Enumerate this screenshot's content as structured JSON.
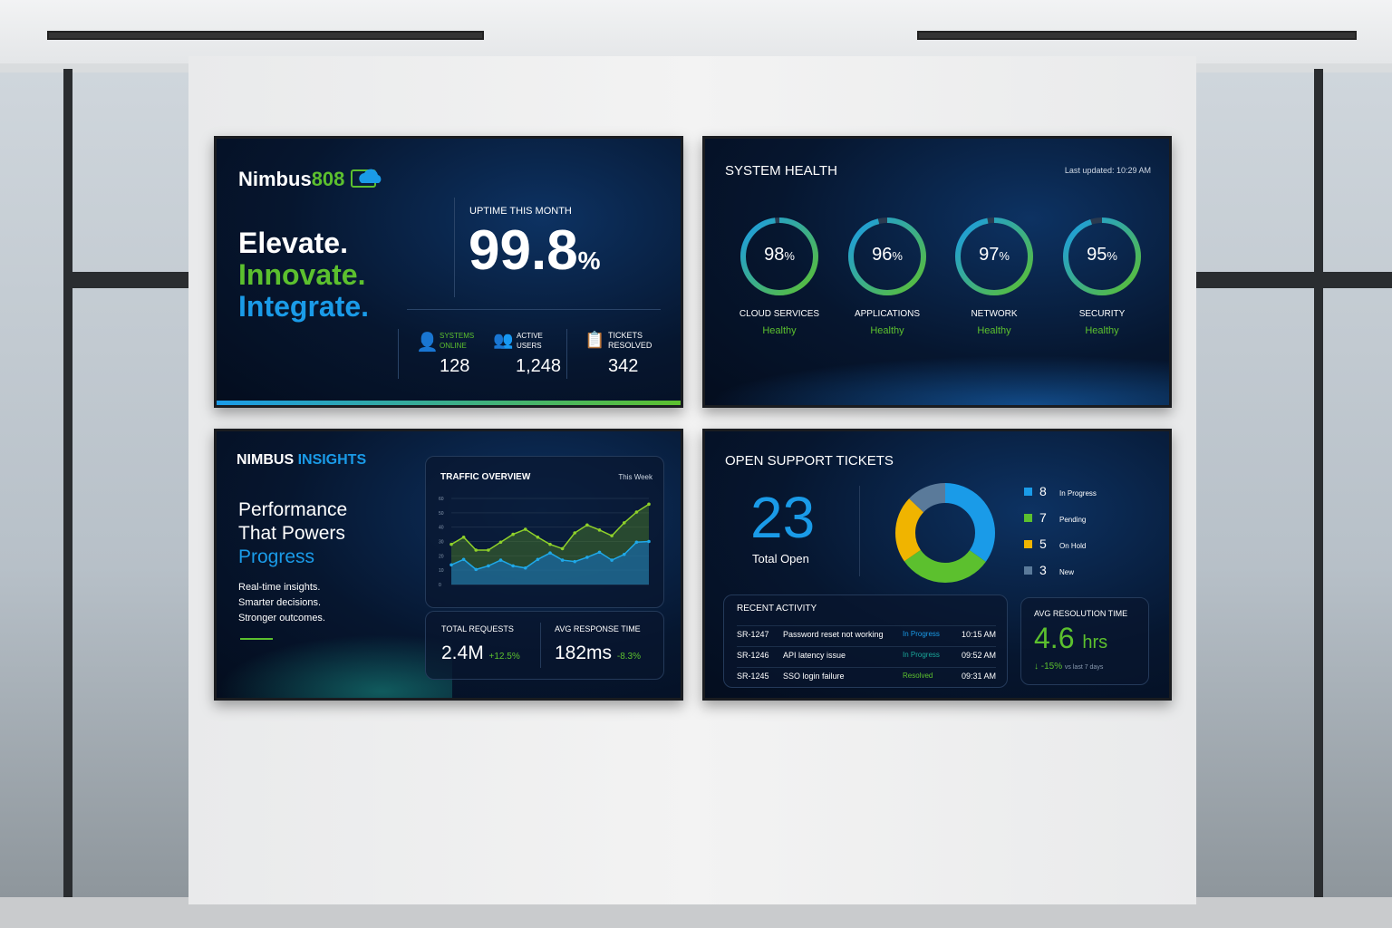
{
  "brand": {
    "name": "Nimbus",
    "number": "808",
    "tagline": [
      "Elevate.",
      "Innovate.",
      "Integrate."
    ]
  },
  "uptime": {
    "label": "UPTIME THIS MONTH",
    "value": "99.8",
    "unit": "%"
  },
  "stats": [
    {
      "label1": "SYSTEMS",
      "label2": "ONLINE",
      "value": "128",
      "icon": "user-check-icon"
    },
    {
      "label1": "ACTIVE",
      "label2": "USERS",
      "value": "1,248",
      "icon": "users-icon"
    },
    {
      "label1": "TICKETS",
      "label2": "RESOLVED",
      "value": "342",
      "icon": "clipboard-icon"
    }
  ],
  "health": {
    "title": "SYSTEM HEALTH",
    "updated": "Last updated: 10:29 AM",
    "items": [
      {
        "value": "98",
        "unit": "%",
        "name": "CLOUD SERVICES",
        "status": "Healthy",
        "pct": 98
      },
      {
        "value": "96",
        "unit": "%",
        "name": "APPLICATIONS",
        "status": "Healthy",
        "pct": 96
      },
      {
        "value": "97",
        "unit": "%",
        "name": "NETWORK",
        "status": "Healthy",
        "pct": 97
      },
      {
        "value": "95",
        "unit": "%",
        "name": "SECURITY",
        "status": "Healthy",
        "pct": 95
      }
    ]
  },
  "insights": {
    "title1": "NIMBUS",
    "title2": "INSIGHTS",
    "headline": [
      "Performance",
      "That Powers",
      "Progress"
    ],
    "sub": [
      "Real-time insights.",
      "Smarter decisions.",
      "Stronger outcomes."
    ]
  },
  "traffic": {
    "title": "TRAFFIC OVERVIEW",
    "range": "This Week"
  },
  "chart_data": {
    "type": "area",
    "title": "TRAFFIC OVERVIEW",
    "ylim": [
      0,
      60
    ],
    "yticks": [
      "0",
      "10",
      "20",
      "30",
      "40",
      "50",
      "60"
    ],
    "series": [
      {
        "name": "green",
        "color": "#8fd12a",
        "values": [
          28,
          33,
          24,
          24,
          29.5,
          35,
          38.5,
          33,
          28,
          25,
          36,
          41.5,
          38,
          34,
          43,
          50.5,
          56
        ]
      },
      {
        "name": "blue",
        "color": "#1fa8e8",
        "values": [
          13.7,
          17.5,
          10.5,
          13,
          17,
          13,
          11.5,
          17.5,
          22,
          17,
          16,
          19,
          22.5,
          17,
          21,
          29.5,
          30
        ]
      }
    ]
  },
  "kpis": [
    {
      "label": "TOTAL REQUESTS",
      "value": "2.4M",
      "delta": "+12.5%"
    },
    {
      "label": "AVG RESPONSE TIME",
      "value": "182ms",
      "delta": "-8.3%"
    }
  ],
  "tickets": {
    "title": "OPEN SUPPORT TICKETS",
    "total": "23",
    "total_label": "Total Open",
    "legend": [
      {
        "count": "8",
        "label": "In Progress",
        "color": "#1a9be8",
        "n": 8
      },
      {
        "count": "7",
        "label": "Pending",
        "color": "#5cc02e",
        "n": 7
      },
      {
        "count": "5",
        "label": "On Hold",
        "color": "#f0b400",
        "n": 5
      },
      {
        "count": "3",
        "label": "New",
        "color": "#5a7a9a",
        "n": 3
      }
    ]
  },
  "activity": {
    "title": "RECENT ACTIVITY",
    "rows": [
      {
        "id": "SR-1247",
        "desc": "Password reset not working",
        "status": "In Progress",
        "time": "10:15 AM",
        "color": "#1a9be8"
      },
      {
        "id": "SR-1246",
        "desc": "API latency issue",
        "status": "In Progress",
        "time": "09:52 AM",
        "color": "#1aa89a"
      },
      {
        "id": "SR-1245",
        "desc": "SSO login failure",
        "status": "Resolved",
        "time": "09:31 AM",
        "color": "#5cc02e"
      }
    ]
  },
  "resolution": {
    "label": "AVG RESOLUTION TIME",
    "value": "4.6",
    "unit": "hrs",
    "delta": "-15%",
    "compare": "vs last 7 days"
  }
}
